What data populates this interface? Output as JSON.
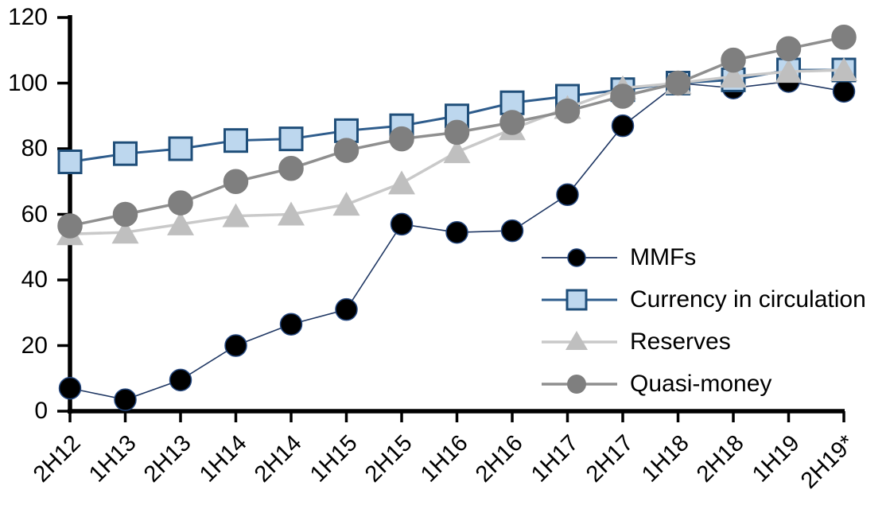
{
  "chart_data": {
    "type": "line",
    "title": "",
    "xlabel": "",
    "ylabel": "",
    "ylim": [
      0,
      120
    ],
    "y_ticks": [
      0,
      20,
      40,
      60,
      80,
      100,
      120
    ],
    "grid": false,
    "legend_position": "inside-right",
    "categories": [
      "2H12",
      "1H13",
      "2H13",
      "1H14",
      "2H14",
      "1H15",
      "2H15",
      "1H16",
      "2H16",
      "1H17",
      "2H17",
      "1H18",
      "2H18",
      "1H19",
      "2H19*"
    ],
    "series": [
      {
        "name": "MMFs",
        "marker": "circle",
        "marker_fill": "#000000",
        "marker_stroke": "#24477F",
        "line_color": "#203864",
        "line_width": 1.6,
        "marker_size": 13.5,
        "values": [
          7,
          3.5,
          9.5,
          20,
          26.5,
          31,
          57,
          54.5,
          55,
          66,
          87,
          100,
          98.5,
          100.5,
          97.5
        ]
      },
      {
        "name": "Currency in circulation",
        "marker": "square",
        "marker_fill": "#BDD7EE",
        "marker_stroke": "#1F4E79",
        "line_color": "#2E5C8C",
        "line_width": 3,
        "marker_size": 28,
        "values": [
          76,
          78.5,
          80,
          82.5,
          83,
          85.5,
          87,
          90,
          94,
          96,
          98,
          100,
          101,
          104,
          104
        ]
      },
      {
        "name": "Reserves",
        "marker": "triangle",
        "marker_fill": "#BFBFBF",
        "marker_stroke": "#BFBFBF",
        "line_color": "#C9C9C9",
        "line_width": 3.5,
        "marker_size": 32,
        "values": [
          54,
          54.5,
          57,
          59.5,
          60,
          63,
          69.5,
          79,
          86,
          92.5,
          98.5,
          100,
          102,
          103.5,
          104
        ]
      },
      {
        "name": "Quasi-money",
        "marker": "circle",
        "marker_fill": "#7F7F7F",
        "marker_stroke": "#7F7F7F",
        "line_color": "#8F8F8F",
        "line_width": 3.5,
        "marker_size": 15,
        "values": [
          56.5,
          60,
          63.5,
          70,
          74,
          79.5,
          83,
          85,
          88,
          91.5,
          96,
          100,
          107,
          110.5,
          114
        ]
      }
    ]
  }
}
